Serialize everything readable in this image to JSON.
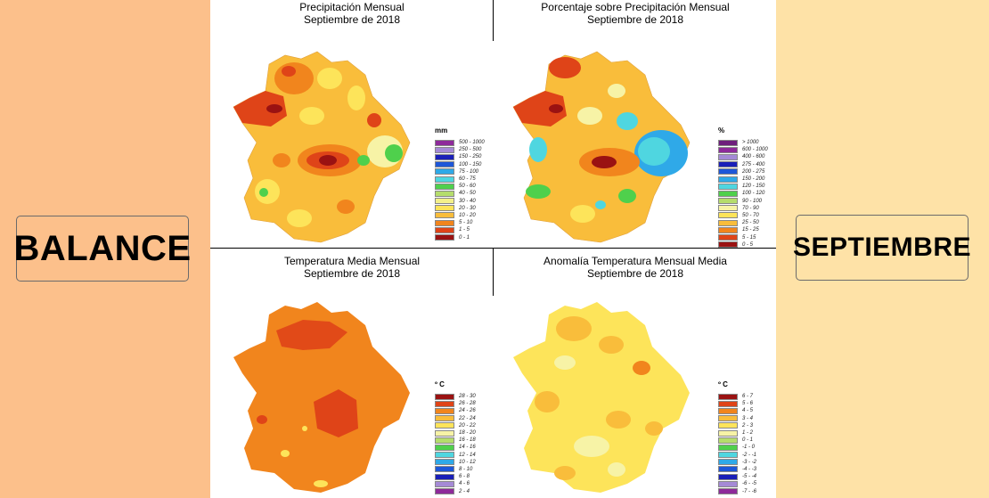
{
  "sides": {
    "left_color": "#fcc08b",
    "right_color": "#fee2a7",
    "left_label": "BALANCE",
    "right_label": "SEPTIEMBRE"
  },
  "panels": [
    {
      "title1": "Precipitación Mensual",
      "title2": "Septiembre de 2018",
      "legend_unit": "mm",
      "legend": [
        {
          "label": "500 - 1000",
          "color": "#8e2a9a"
        },
        {
          "label": "250 - 500",
          "color": "#a58ad6"
        },
        {
          "label": "150 - 250",
          "color": "#1a1fb8"
        },
        {
          "label": "100 - 150",
          "color": "#1e57d8"
        },
        {
          "label": "75 - 100",
          "color": "#2fa9e8"
        },
        {
          "label": "60 - 75",
          "color": "#4fd6e0"
        },
        {
          "label": "50 - 60",
          "color": "#4fd04c"
        },
        {
          "label": "40 - 50",
          "color": "#b5dd6c"
        },
        {
          "label": "30 - 40",
          "color": "#f3f08a"
        },
        {
          "label": "20 - 30",
          "color": "#fde45a"
        },
        {
          "label": "10 - 20",
          "color": "#f9bd3b"
        },
        {
          "label": "5 - 10",
          "color": "#f1851d"
        },
        {
          "label": "1 - 5",
          "color": "#df4418"
        },
        {
          "label": "0 - 1",
          "color": "#9a1212"
        }
      ]
    },
    {
      "title1": "Porcentaje sobre Precipitación Mensual",
      "title2": "Septiembre de 2018",
      "legend_unit": "%",
      "legend": [
        {
          "label": "> 1000",
          "color": "#6e1f7c"
        },
        {
          "label": "600 - 1000",
          "color": "#8e2a9a"
        },
        {
          "label": "400 - 600",
          "color": "#a58ad6"
        },
        {
          "label": "275 - 400",
          "color": "#1a1fb8"
        },
        {
          "label": "200 - 275",
          "color": "#1e57d8"
        },
        {
          "label": "150 - 200",
          "color": "#2fa9e8"
        },
        {
          "label": "120 - 150",
          "color": "#4fd6e0"
        },
        {
          "label": "100 - 120",
          "color": "#4fd04c"
        },
        {
          "label": "90 - 100",
          "color": "#b5dd6c"
        },
        {
          "label": "70 - 90",
          "color": "#f7f3a6"
        },
        {
          "label": "50 - 70",
          "color": "#fde45a"
        },
        {
          "label": "25 - 50",
          "color": "#f9bd3b"
        },
        {
          "label": "15 - 25",
          "color": "#f1851d"
        },
        {
          "label": "5 - 15",
          "color": "#df4418"
        },
        {
          "label": "0 - 5",
          "color": "#9a1212"
        }
      ]
    },
    {
      "title1": "Temperatura Media Mensual",
      "title2": "Septiembre de 2018",
      "legend_unit": "º C",
      "legend": [
        {
          "label": "28 - 30",
          "color": "#9a1212"
        },
        {
          "label": "26 - 28",
          "color": "#df4418"
        },
        {
          "label": "24 - 26",
          "color": "#f1851d"
        },
        {
          "label": "22 - 24",
          "color": "#f9bd3b"
        },
        {
          "label": "20 - 22",
          "color": "#fde45a"
        },
        {
          "label": "18 - 20",
          "color": "#f7f3a6"
        },
        {
          "label": "16 - 18",
          "color": "#b5dd6c"
        },
        {
          "label": "14 - 16",
          "color": "#4fd04c"
        },
        {
          "label": "12 - 14",
          "color": "#4fd6e0"
        },
        {
          "label": "10 - 12",
          "color": "#2fa9e8"
        },
        {
          "label": "8 - 10",
          "color": "#1e57d8"
        },
        {
          "label": "6 - 8",
          "color": "#1a1fb8"
        },
        {
          "label": "4 - 6",
          "color": "#a58ad6"
        },
        {
          "label": "2 - 4",
          "color": "#8e2a9a"
        }
      ]
    },
    {
      "title1": "Anomalía Temperatura Mensual Media",
      "title2": "Septiembre de 2018",
      "legend_unit": "º C",
      "legend": [
        {
          "label": "6 - 7",
          "color": "#9a1212"
        },
        {
          "label": "5 - 6",
          "color": "#df4418"
        },
        {
          "label": "4 - 5",
          "color": "#f1851d"
        },
        {
          "label": "3 - 4",
          "color": "#f9bd3b"
        },
        {
          "label": "2 - 3",
          "color": "#fde45a"
        },
        {
          "label": "1 - 2",
          "color": "#f7f3a6"
        },
        {
          "label": "0 - 1",
          "color": "#b5dd6c"
        },
        {
          "label": "-1 - 0",
          "color": "#4fd04c"
        },
        {
          "label": "-2 - -1",
          "color": "#4fd6e0"
        },
        {
          "label": "-3 - -2",
          "color": "#2fa9e8"
        },
        {
          "label": "-4 - -3",
          "color": "#1e57d8"
        },
        {
          "label": "-5 - -4",
          "color": "#1a1fb8"
        },
        {
          "label": "-6 - -5",
          "color": "#a58ad6"
        },
        {
          "label": "-7 - -6",
          "color": "#8e2a9a"
        }
      ]
    }
  ]
}
